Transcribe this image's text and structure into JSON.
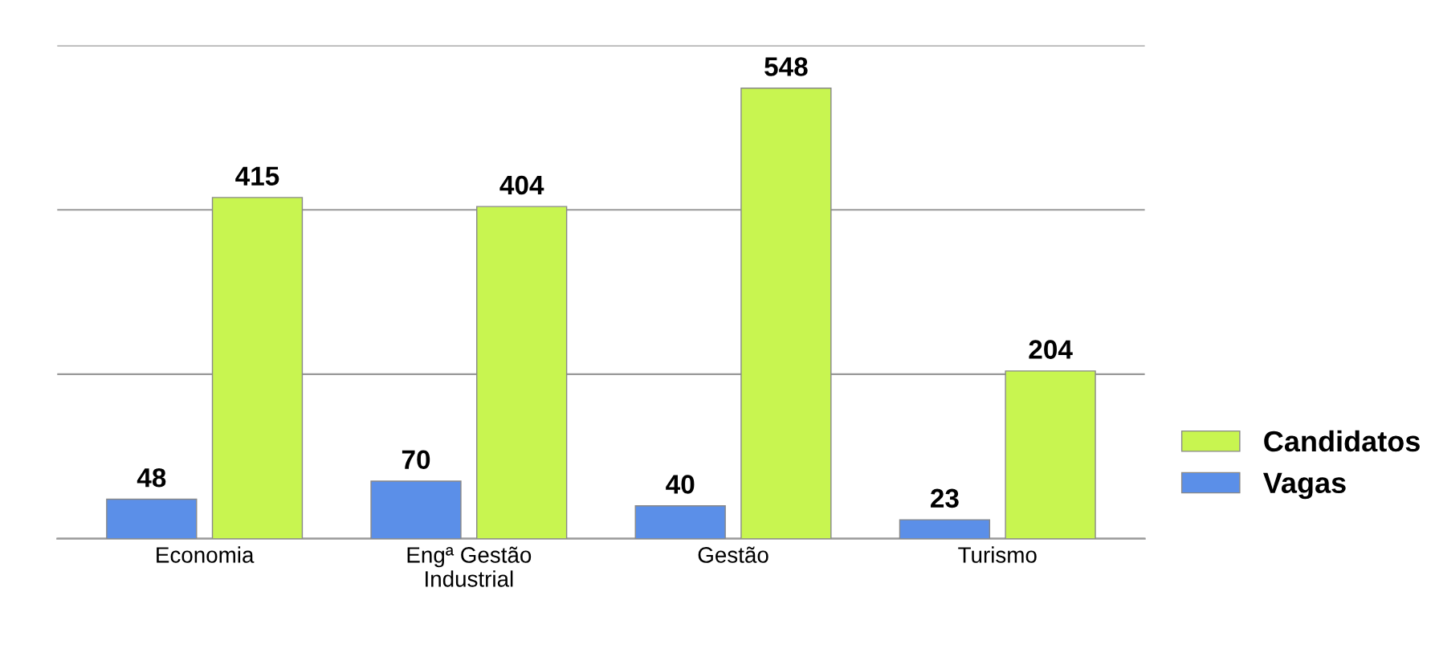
{
  "chart_data": {
    "type": "bar",
    "categories": [
      "Economia",
      "Engª Gestão\nIndustrial",
      "Gestão",
      "Turismo"
    ],
    "series": [
      {
        "name": "Vagas",
        "color": "#5b8fe8",
        "values": [
          48,
          70,
          40,
          23
        ]
      },
      {
        "name": "Candidatos",
        "color": "#c8f550",
        "values": [
          415,
          404,
          548,
          204
        ]
      }
    ],
    "ylim": [
      0,
      600
    ],
    "yticks": [
      {
        "value": 0,
        "label": null
      },
      {
        "value": 200,
        "label": null
      },
      {
        "value": 400,
        "label": null
      },
      {
        "value": 600,
        "label": null
      }
    ],
    "grid": "y",
    "tick_labels": "x",
    "data_labels": true,
    "legend": "right"
  }
}
